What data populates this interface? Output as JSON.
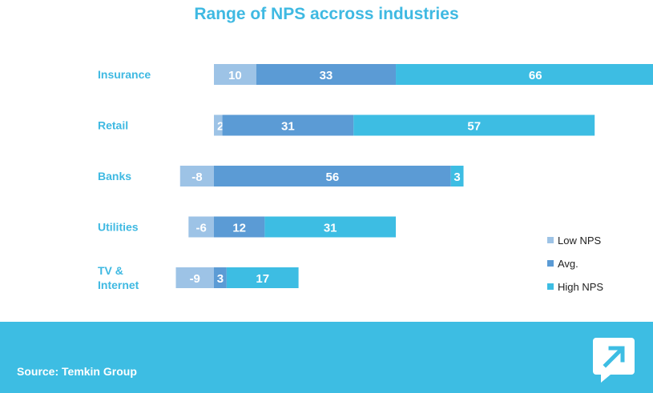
{
  "title": "Range of NPS accross industries",
  "source": "Source: Temkin Group",
  "colors": {
    "low": "#9dc3e6",
    "avg": "#5b9bd5",
    "high": "#3dbde3",
    "accent": "#3fb9e2"
  },
  "chart_data": {
    "type": "bar",
    "orientation": "horizontal",
    "stacked": true,
    "title": "Range of NPS accross industries",
    "categories": [
      [
        "Insurance"
      ],
      [
        "Retail"
      ],
      [
        "Banks"
      ],
      [
        "Utilities"
      ],
      [
        "TV &",
        "Internet"
      ]
    ],
    "series": [
      {
        "name": "Low NPS",
        "key": "low",
        "values": [
          10,
          2,
          -8,
          -6,
          -9
        ]
      },
      {
        "name": "Avg.",
        "key": "avg",
        "values": [
          33,
          31,
          56,
          12,
          3
        ]
      },
      {
        "name": "High NPS",
        "key": "high",
        "values": [
          66,
          57,
          3,
          31,
          17
        ]
      }
    ],
    "legend_position": "bottom-right",
    "grid": false
  },
  "logo": {
    "icon": "arrow-up-right-chat-icon"
  }
}
